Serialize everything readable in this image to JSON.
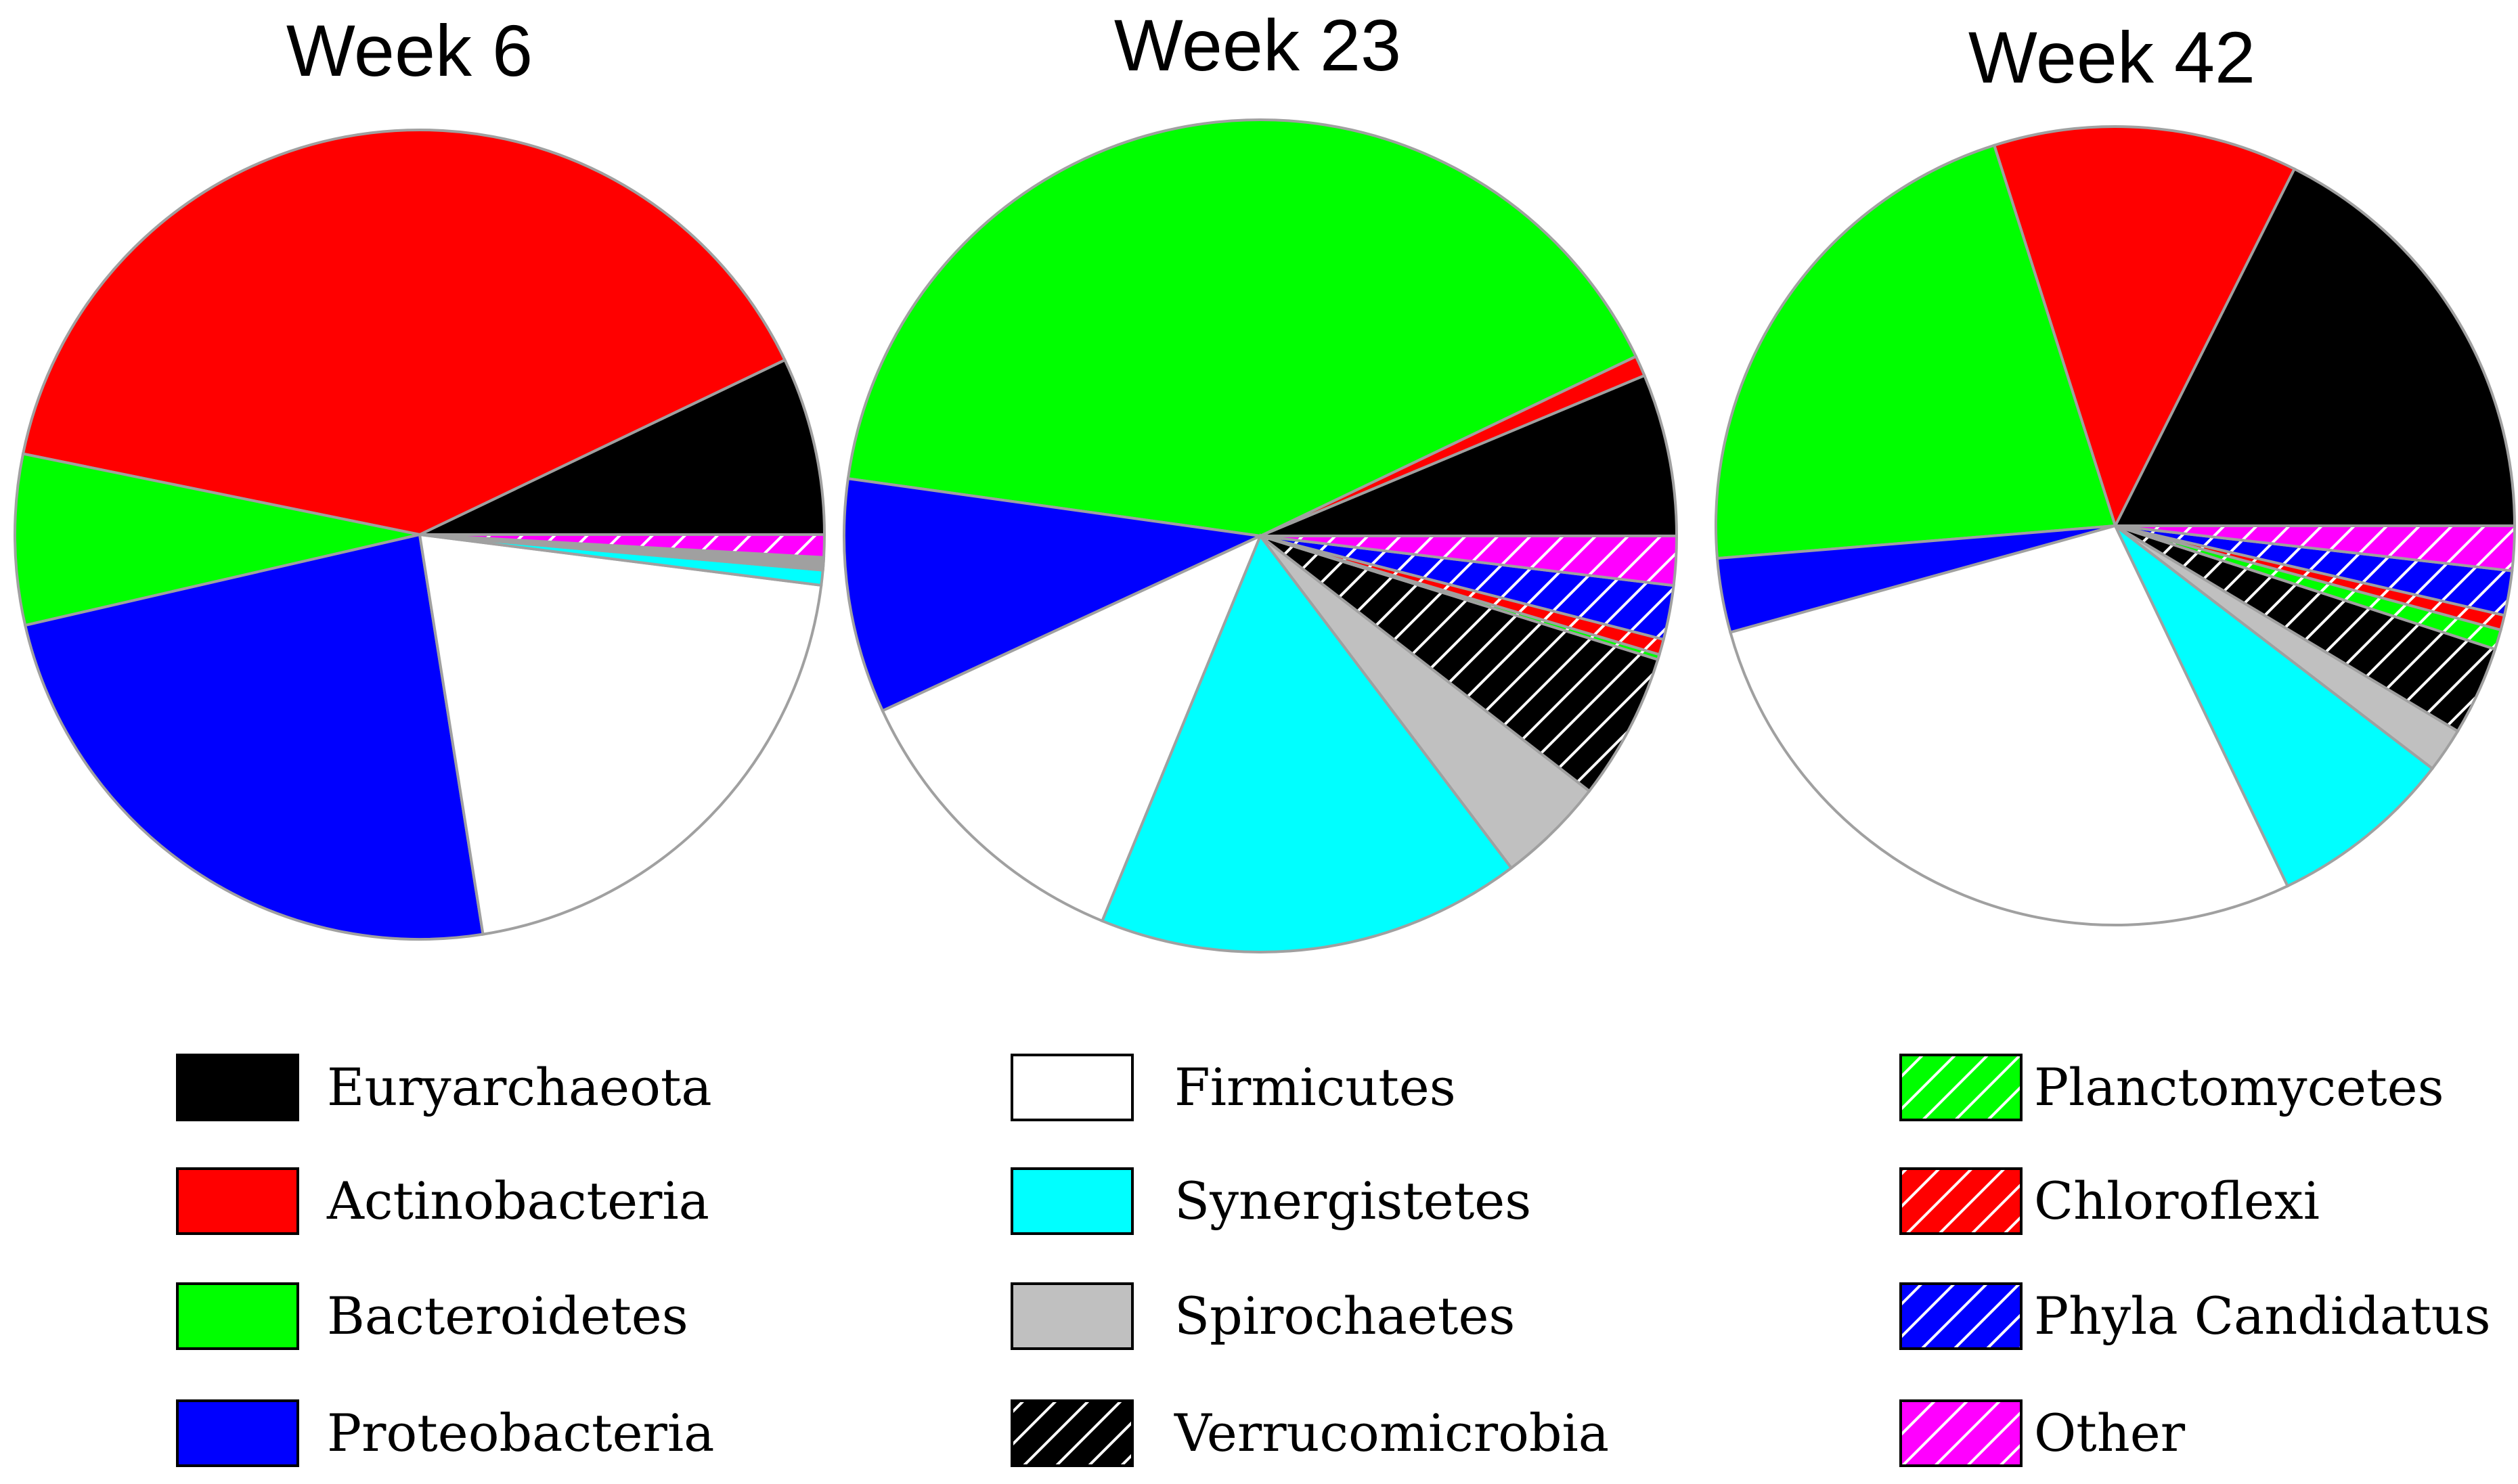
{
  "colors": {
    "Euryarchaeota": "#000000",
    "Actinobacteria": "#ff0000",
    "Bacteroidetes": "#00ff00",
    "Proteobacteria": "#0000ff",
    "Firmicutes": "#ffffff",
    "Synergistetes": "#00ffff",
    "Spirochaetes": "#c0c0c0",
    "Verrucomicrobia": "#000000",
    "Planctomycetes": "#00ff00",
    "Chloroflexi": "#ff0000",
    "Phyla Candidatus": "#0000ff",
    "Other": "#ff00ff"
  },
  "hatched": [
    "Verrucomicrobia",
    "Planctomycetes",
    "Chloroflexi",
    "Phyla Candidatus",
    "Other"
  ],
  "legend": {
    "columns": [
      [
        "Euryarchaeota",
        "Actinobacteria",
        "Bacteroidetes",
        "Proteobacteria"
      ],
      [
        "Firmicutes",
        "Synergistetes",
        "Spirochaetes",
        "Verrucomicrobia"
      ],
      [
        "Planctomycetes",
        "Chloroflexi",
        "Phyla Candidatus",
        "Other"
      ]
    ]
  },
  "chart_data": [
    {
      "type": "pie",
      "title": "Week 6",
      "slices": [
        {
          "name": "Euryarchaeota",
          "value": 7.1,
          "label": "7.1%"
        },
        {
          "name": "Actinobacteria",
          "value": 39.7,
          "label": "39.7%"
        },
        {
          "name": "Bacteroidetes",
          "value": 6.8,
          "label": "6.8%"
        },
        {
          "name": "Proteobacteria",
          "value": 23.9,
          "label": "23.9%"
        },
        {
          "name": "Firmicutes",
          "value": 20.5,
          "label": "20.5%"
        },
        {
          "name": "Synergistetes",
          "value": 0.6,
          "label": ""
        },
        {
          "name": "Spirochaetes",
          "value": 0.1,
          "label": ""
        },
        {
          "name": "Verrucomicrobia",
          "value": 0.1,
          "label": ""
        },
        {
          "name": "Planctomycetes",
          "value": 0.1,
          "label": ""
        },
        {
          "name": "Chloroflexi",
          "value": 0.1,
          "label": ""
        },
        {
          "name": "Phyla Candidatus",
          "value": 0.1,
          "label": ""
        },
        {
          "name": "Other",
          "value": 0.9,
          "label": ""
        }
      ]
    },
    {
      "type": "pie",
      "title": "Week 23",
      "slices": [
        {
          "name": "Euryarchaeota",
          "value": 6.3,
          "label": "6.3%"
        },
        {
          "name": "Actinobacteria",
          "value": 0.8,
          "label": ""
        },
        {
          "name": "Bacteroidetes",
          "value": 40.7,
          "label": "40.7%"
        },
        {
          "name": "Proteobacteria",
          "value": 9.1,
          "label": "9.1%"
        },
        {
          "name": "Firmicutes",
          "value": 11.9,
          "label": "11.9%"
        },
        {
          "name": "Synergistetes",
          "value": 16.5,
          "label": "16.5%"
        },
        {
          "name": "Spirochaetes",
          "value": 4.2,
          "label": "4.2%"
        },
        {
          "name": "Verrucomicrobia",
          "value": 5.7,
          "label": "5.7%"
        },
        {
          "name": "Planctomycetes",
          "value": 0.2,
          "label": ""
        },
        {
          "name": "Chloroflexi",
          "value": 0.6,
          "label": ""
        },
        {
          "name": "Phyla Candidatus",
          "value": 2.1,
          "label": "2.1%"
        },
        {
          "name": "Other",
          "value": 1.9,
          "label": ""
        }
      ]
    },
    {
      "type": "pie",
      "title": "Week 42",
      "slices": [
        {
          "name": "Euryarchaeota",
          "value": 17.6,
          "label": "17.6%"
        },
        {
          "name": "Actinobacteria",
          "value": 12.3,
          "label": "12.3%"
        },
        {
          "name": "Bacteroidetes",
          "value": 21.4,
          "label": "21.4%"
        },
        {
          "name": "Proteobacteria",
          "value": 3.0,
          "label": "3%"
        },
        {
          "name": "Firmicutes",
          "value": 27.8,
          "label": "27.8%"
        },
        {
          "name": "Synergistetes",
          "value": 7.5,
          "label": "7.5%"
        },
        {
          "name": "Spirochaetes",
          "value": 1.8,
          "label": "1.8%"
        },
        {
          "name": "Verrucomicrobia",
          "value": 3.6,
          "label": "3.6%"
        },
        {
          "name": "Planctomycetes",
          "value": 0.8,
          "label": ""
        },
        {
          "name": "Chloroflexi",
          "value": 0.6,
          "label": ""
        },
        {
          "name": "Phyla Candidatus",
          "value": 1.8,
          "label": "1.8%"
        },
        {
          "name": "Other",
          "value": 1.8,
          "label": ""
        }
      ]
    }
  ]
}
